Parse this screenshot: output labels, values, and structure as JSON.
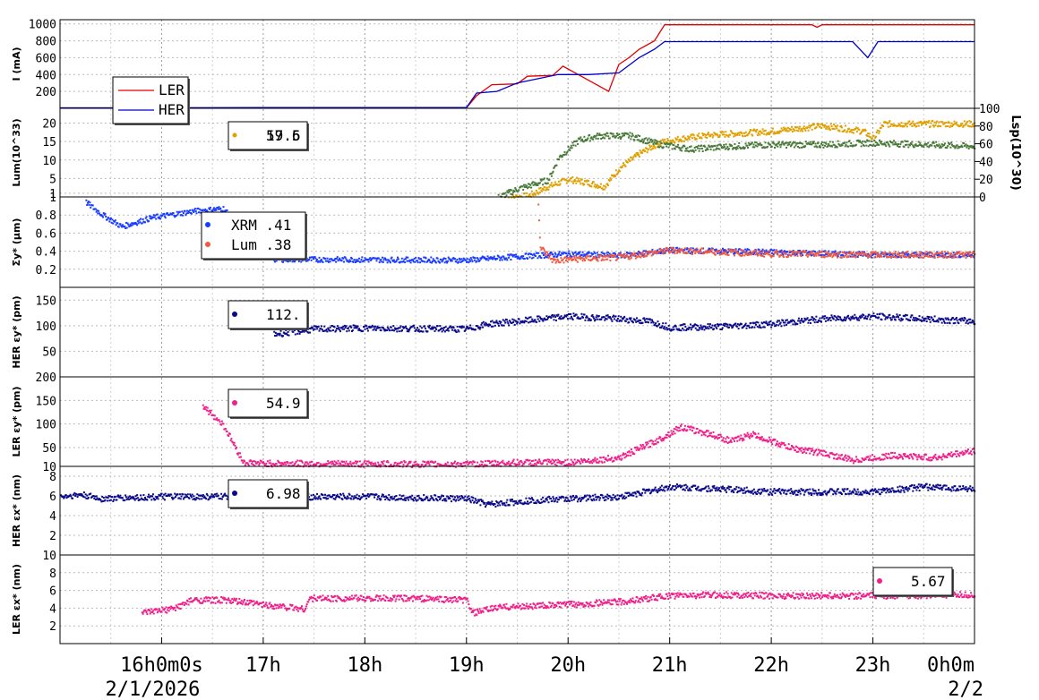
{
  "chart_data": {
    "type": "line",
    "x_axis": {
      "unit": "hour",
      "range": [
        "2/1/2026 15:00",
        "2/2/2026 00:00"
      ],
      "major_ticks": [
        {
          "hour": 16,
          "label": "16h0m0s",
          "sub": "2/1/2026"
        },
        {
          "hour": 17,
          "label": "17h"
        },
        {
          "hour": 18,
          "label": "18h"
        },
        {
          "hour": 19,
          "label": "19h"
        },
        {
          "hour": 20,
          "label": "20h"
        },
        {
          "hour": 21,
          "label": "21h"
        },
        {
          "hour": 22,
          "label": "22h"
        },
        {
          "hour": 23,
          "label": "23h"
        },
        {
          "hour": 24,
          "label": "0h0m",
          "sub": "2/2"
        }
      ],
      "grid": true
    },
    "panels": [
      {
        "id": "current",
        "ylabel": "I (mA)",
        "ylim": [
          0,
          1050
        ],
        "yticks": [
          200,
          400,
          600,
          800,
          1000
        ],
        "legend": [
          {
            "name": "LER",
            "color": "#e00000"
          },
          {
            "name": "HER",
            "color": "#0000cc"
          }
        ],
        "series": [
          {
            "name": "LER",
            "color": "#e00000",
            "kind": "line",
            "points": [
              [
                15,
                5
              ],
              [
                19,
                5
              ],
              [
                19.1,
                150
              ],
              [
                19.25,
                280
              ],
              [
                19.5,
                290
              ],
              [
                19.6,
                380
              ],
              [
                19.85,
                390
              ],
              [
                19.95,
                500
              ],
              [
                20.1,
                400
              ],
              [
                20.4,
                200
              ],
              [
                20.5,
                520
              ],
              [
                20.6,
                600
              ],
              [
                20.7,
                700
              ],
              [
                20.85,
                800
              ],
              [
                20.95,
                990
              ],
              [
                22.4,
                990
              ],
              [
                22.45,
                960
              ],
              [
                22.5,
                990
              ],
              [
                24,
                990
              ]
            ]
          },
          {
            "name": "HER",
            "color": "#0000cc",
            "kind": "line",
            "points": [
              [
                15,
                5
              ],
              [
                15.8,
                5
              ],
              [
                17,
                10
              ],
              [
                19,
                10
              ],
              [
                19.1,
                180
              ],
              [
                19.3,
                200
              ],
              [
                19.5,
                300
              ],
              [
                19.9,
                400
              ],
              [
                20.2,
                400
              ],
              [
                20.5,
                420
              ],
              [
                20.6,
                510
              ],
              [
                20.7,
                600
              ],
              [
                20.85,
                700
              ],
              [
                20.95,
                790
              ],
              [
                22.8,
                790
              ],
              [
                22.95,
                600
              ],
              [
                23.05,
                790
              ],
              [
                24,
                790
              ]
            ]
          }
        ]
      },
      {
        "id": "luminosity",
        "ylabel": "Lum(10^33)",
        "ylim": [
          0,
          24
        ],
        "yticks": [
          1,
          5,
          10,
          15,
          20
        ],
        "ylabel_right": "Lsp(10^30)",
        "ylim_right": [
          0,
          100
        ],
        "yticks_right": [
          0,
          20,
          40,
          60,
          80,
          100
        ],
        "legend_value_label": "19.5",
        "legend_value_label_2": "57.6",
        "legend_color": "#e0a000",
        "series": [
          {
            "name": "Lum",
            "color": "#e0a000",
            "kind": "band",
            "points": [
              [
                19.4,
                0
              ],
              [
                19.6,
                0.5
              ],
              [
                19.8,
                3
              ],
              [
                20,
                5
              ],
              [
                20.2,
                4
              ],
              [
                20.35,
                3
              ],
              [
                20.5,
                8
              ],
              [
                20.7,
                12
              ],
              [
                20.9,
                15
              ],
              [
                21.1,
                16
              ],
              [
                21.4,
                17
              ],
              [
                22,
                18
              ],
              [
                22.5,
                19.5
              ],
              [
                22.9,
                18
              ],
              [
                23,
                16
              ],
              [
                23.1,
                20
              ],
              [
                24,
                20
              ]
            ]
          },
          {
            "name": "Lsp",
            "color": "#4a7a3a",
            "kind": "band",
            "right_axis": true,
            "points": [
              [
                19.3,
                0
              ],
              [
                19.5,
                10
              ],
              [
                19.8,
                20
              ],
              [
                19.9,
                45
              ],
              [
                20.1,
                65
              ],
              [
                20.3,
                70
              ],
              [
                20.6,
                70
              ],
              [
                20.9,
                60
              ],
              [
                21.2,
                55
              ],
              [
                21.6,
                58
              ],
              [
                22,
                60
              ],
              [
                22.5,
                60
              ],
              [
                23,
                62
              ],
              [
                23.5,
                60
              ],
              [
                24,
                58
              ]
            ]
          }
        ]
      },
      {
        "id": "sigma_y",
        "ylabel": "Σy* (μm)",
        "ylim": [
          0,
          1
        ],
        "yticks": [
          0.2,
          0.4,
          0.6,
          0.8,
          1
        ],
        "legend": [
          {
            "name": "XRM",
            "value": ".41",
            "color": "#1a3cff"
          },
          {
            "name": "Lum",
            "value": ".38",
            "color": "#f05a40"
          }
        ],
        "series": [
          {
            "name": "XRM",
            "color": "#1a3cff",
            "kind": "scatter",
            "points": [
              [
                15.25,
                0.95
              ],
              [
                15.4,
                0.82
              ],
              [
                15.6,
                0.68
              ],
              [
                15.9,
                0.78
              ],
              [
                16.3,
                0.85
              ],
              [
                16.6,
                0.88
              ],
              [
                17.1,
                0.32
              ],
              [
                19,
                0.31
              ],
              [
                19.5,
                0.35
              ],
              [
                20,
                0.38
              ],
              [
                20.5,
                0.36
              ],
              [
                21,
                0.42
              ],
              [
                22,
                0.4
              ],
              [
                23,
                0.37
              ],
              [
                24,
                0.37
              ]
            ]
          },
          {
            "name": "Lum",
            "color": "#f05a40",
            "kind": "band",
            "points": [
              [
                19.7,
                0.95
              ],
              [
                19.72,
                0.45
              ],
              [
                19.85,
                0.3
              ],
              [
                20,
                0.32
              ],
              [
                20.5,
                0.34
              ],
              [
                21,
                0.42
              ],
              [
                21.5,
                0.4
              ],
              [
                22,
                0.38
              ],
              [
                23,
                0.37
              ],
              [
                24,
                0.37
              ]
            ]
          }
        ]
      },
      {
        "id": "her_eps_y",
        "ylabel": "HER εy* (pm)",
        "ylim": [
          0,
          175
        ],
        "yticks": [
          50,
          100,
          150
        ],
        "legend_value": "112.",
        "legend_color": "#0a0a8a",
        "series": [
          {
            "name": "HER εy*",
            "color": "#0a0a8a",
            "kind": "band",
            "points": [
              [
                17.1,
                85
              ],
              [
                17.5,
                95
              ],
              [
                18,
                97
              ],
              [
                19,
                95
              ],
              [
                19.2,
                105
              ],
              [
                19.5,
                110
              ],
              [
                20,
                120
              ],
              [
                20.5,
                115
              ],
              [
                20.8,
                110
              ],
              [
                21,
                98
              ],
              [
                21.5,
                100
              ],
              [
                22,
                105
              ],
              [
                22.5,
                115
              ],
              [
                23,
                120
              ],
              [
                23.5,
                115
              ],
              [
                24,
                110
              ]
            ]
          }
        ]
      },
      {
        "id": "ler_eps_y",
        "ylabel": "LER εy* (pm)",
        "ylim": [
          10,
          200
        ],
        "yticks": [
          10,
          50,
          100,
          150,
          200
        ],
        "legend_value": "54.9",
        "legend_color": "#f0208a",
        "series": [
          {
            "name": "LER εy*",
            "color": "#f0208a",
            "kind": "band",
            "points": [
              [
                16.4,
                140
              ],
              [
                16.6,
                100
              ],
              [
                16.7,
                60
              ],
              [
                16.8,
                20
              ],
              [
                17,
                18
              ],
              [
                18,
                17
              ],
              [
                19,
                16
              ],
              [
                19.5,
                20
              ],
              [
                20,
                20
              ],
              [
                20.5,
                30
              ],
              [
                20.9,
                70
              ],
              [
                21.1,
                95
              ],
              [
                21.4,
                80
              ],
              [
                21.6,
                65
              ],
              [
                21.8,
                80
              ],
              [
                22.2,
                50
              ],
              [
                22.5,
                40
              ],
              [
                22.8,
                25
              ],
              [
                23.2,
                35
              ],
              [
                23.6,
                30
              ],
              [
                24,
                45
              ]
            ]
          }
        ]
      },
      {
        "id": "her_eps_x",
        "ylabel": "HER εx* (nm)",
        "ylim": [
          0,
          9
        ],
        "yticks": [
          2,
          4,
          6,
          8
        ],
        "legend_value": "6.98",
        "legend_color": "#0a0a8a",
        "series": [
          {
            "name": "HER εx*",
            "color": "#0a0a8a",
            "kind": "band",
            "points": [
              [
                15,
                6
              ],
              [
                15.2,
                6.2
              ],
              [
                15.4,
                5.8
              ],
              [
                16,
                6
              ],
              [
                17,
                6
              ],
              [
                18,
                6
              ],
              [
                19,
                5.8
              ],
              [
                19.2,
                5.2
              ],
              [
                19.6,
                5.6
              ],
              [
                20,
                5.8
              ],
              [
                20.5,
                6
              ],
              [
                21,
                7
              ],
              [
                21.5,
                6.8
              ],
              [
                22,
                6.5
              ],
              [
                22.5,
                6.5
              ],
              [
                23,
                6.5
              ],
              [
                23.5,
                7
              ],
              [
                24,
                6.8
              ]
            ]
          }
        ]
      },
      {
        "id": "ler_eps_x",
        "ylabel": "LER εx* (nm)",
        "ylim": [
          0,
          10
        ],
        "yticks": [
          2,
          4,
          6,
          8,
          10
        ],
        "legend_value": "5.67",
        "legend_color": "#f0208a",
        "series": [
          {
            "name": "LER εx*",
            "color": "#f0208a",
            "kind": "band",
            "points": [
              [
                15.8,
                3.5
              ],
              [
                16.1,
                4
              ],
              [
                16.3,
                5
              ],
              [
                16.6,
                5
              ],
              [
                17,
                4.5
              ],
              [
                17.4,
                4
              ],
              [
                17.45,
                5.2
              ],
              [
                18.5,
                5.2
              ],
              [
                19,
                5
              ],
              [
                19.05,
                3.5
              ],
              [
                19.3,
                4.2
              ],
              [
                20,
                4.5
              ],
              [
                20.5,
                4.8
              ],
              [
                21,
                5.5
              ],
              [
                21.5,
                5.6
              ],
              [
                22,
                5.5
              ],
              [
                23,
                5.5
              ],
              [
                24,
                5.6
              ]
            ]
          }
        ]
      }
    ]
  }
}
